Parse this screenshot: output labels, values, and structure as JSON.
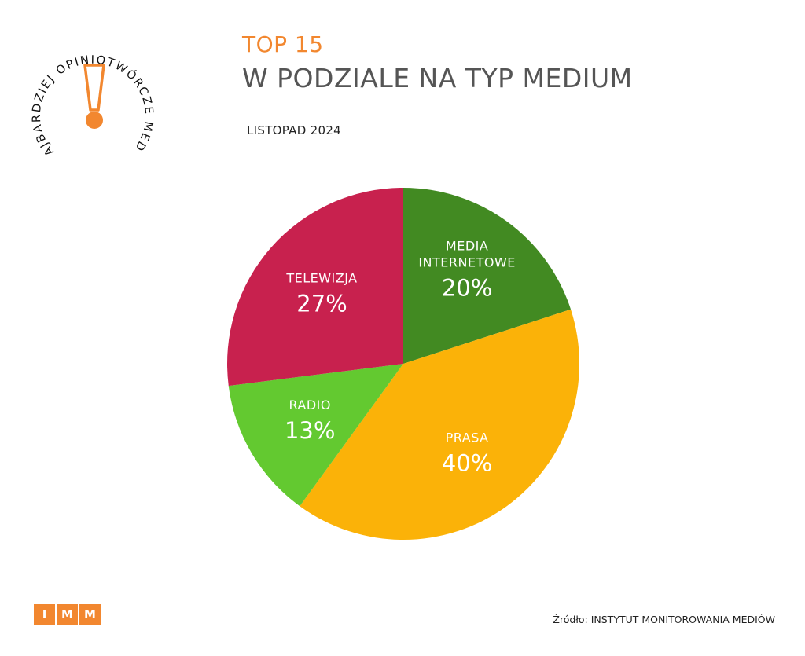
{
  "logo": {
    "curved_text": "NAJBARDZIEJ OPINIOTWÓRCZE MEDIA",
    "icon": "exclamation-icon",
    "accent": "#f2872f",
    "text_color": "#111111"
  },
  "header": {
    "title": "TOP 15",
    "subtitle": "W PODZIALE NA TYP MEDIUM",
    "date": "LISTOPAD 2024",
    "title_color": "#f2872f",
    "subtitle_color": "#555555"
  },
  "chart_data": {
    "type": "pie",
    "slices": [
      {
        "label": [
          "MEDIA",
          "INTERNETOWE"
        ],
        "value": 20,
        "display": "20%",
        "color": "#428a22"
      },
      {
        "label": [
          "PRASA"
        ],
        "value": 40,
        "display": "40%",
        "color": "#fbb208"
      },
      {
        "label": [
          "RADIO"
        ],
        "value": 13,
        "display": "13%",
        "color": "#63c930"
      },
      {
        "label": [
          "TELEWIZJA"
        ],
        "value": 27,
        "display": "27%",
        "color": "#c8214e"
      }
    ]
  },
  "footer": {
    "brand_letters": [
      "I",
      "M",
      "M"
    ],
    "brand_color": "#f2872f",
    "source": "Źródło: INSTYTUT MONITOROWANIA MEDIÓW"
  }
}
